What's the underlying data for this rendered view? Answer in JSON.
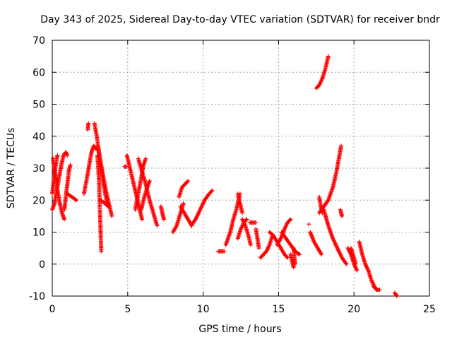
{
  "chart_data": {
    "type": "scatter",
    "title": "Day 343 of 2025, Sidereal Day-to-day VTEC variation (SDTVAR) for receiver bndr",
    "xlabel": "GPS time / hours",
    "ylabel": "SDTVAR / TECUs",
    "xlim": [
      0,
      25
    ],
    "ylim": [
      -10,
      70
    ],
    "xticks": [
      "0",
      "5",
      "10",
      "15",
      "20",
      "25"
    ],
    "yticks": [
      "-10",
      "0",
      "10",
      "20",
      "30",
      "40",
      "50",
      "60",
      "70"
    ],
    "grid": true,
    "marker": "plus",
    "color": "#ff0000",
    "series": [
      {
        "points": [
          [
            0.0,
            22
          ],
          [
            0.1,
            26
          ],
          [
            0.2,
            30
          ],
          [
            0.3,
            33
          ],
          [
            0.35,
            34
          ]
        ]
      },
      {
        "points": [
          [
            0.0,
            17
          ],
          [
            0.15,
            19
          ],
          [
            0.3,
            23
          ],
          [
            0.45,
            27
          ],
          [
            0.6,
            31
          ],
          [
            0.75,
            34
          ],
          [
            0.9,
            35
          ],
          [
            1.0,
            34
          ]
        ]
      },
      {
        "points": [
          [
            0.05,
            33
          ],
          [
            0.2,
            28
          ],
          [
            0.35,
            23
          ],
          [
            0.5,
            19
          ],
          [
            0.65,
            16
          ],
          [
            0.8,
            14
          ]
        ]
      },
      {
        "points": [
          [
            0.8,
            17
          ],
          [
            0.9,
            21
          ],
          [
            1.0,
            25
          ],
          [
            1.1,
            29
          ],
          [
            1.2,
            31
          ]
        ]
      },
      {
        "points": [
          [
            1.0,
            22
          ],
          [
            1.3,
            21
          ],
          [
            1.6,
            20
          ]
        ]
      },
      {
        "points": [
          [
            2.1,
            22
          ],
          [
            2.3,
            27
          ],
          [
            2.45,
            31
          ],
          [
            2.6,
            35
          ],
          [
            2.75,
            37
          ],
          [
            2.9,
            36
          ]
        ]
      },
      {
        "points": [
          [
            2.35,
            42
          ],
          [
            2.4,
            44
          ]
        ]
      },
      {
        "points": [
          [
            2.8,
            44
          ],
          [
            2.95,
            40
          ],
          [
            3.1,
            35
          ],
          [
            3.25,
            30
          ],
          [
            3.4,
            25
          ],
          [
            3.55,
            21
          ],
          [
            3.7,
            18
          ]
        ]
      },
      {
        "points": [
          [
            3.0,
            34
          ],
          [
            3.1,
            26
          ],
          [
            3.15,
            18
          ],
          [
            3.2,
            11
          ],
          [
            3.25,
            4
          ]
        ]
      },
      {
        "points": [
          [
            3.2,
            20
          ],
          [
            3.5,
            19
          ],
          [
            3.7,
            18
          ]
        ]
      },
      {
        "points": [
          [
            3.0,
            37
          ],
          [
            3.2,
            32
          ],
          [
            3.4,
            27
          ],
          [
            3.6,
            22
          ],
          [
            3.8,
            18
          ],
          [
            3.95,
            15
          ]
        ]
      },
      {
        "points": [
          [
            4.8,
            30.5
          ],
          [
            4.9,
            30.5
          ]
        ]
      },
      {
        "points": [
          [
            4.95,
            34
          ],
          [
            5.15,
            30
          ],
          [
            5.35,
            26
          ],
          [
            5.55,
            22
          ],
          [
            5.75,
            18
          ],
          [
            5.95,
            14
          ]
        ]
      },
      {
        "points": [
          [
            5.5,
            17
          ],
          [
            5.7,
            22
          ],
          [
            5.9,
            27
          ],
          [
            6.05,
            31
          ],
          [
            6.2,
            33
          ]
        ]
      },
      {
        "points": [
          [
            5.7,
            33
          ],
          [
            5.95,
            29
          ],
          [
            6.2,
            25
          ],
          [
            6.45,
            20
          ],
          [
            6.7,
            16
          ],
          [
            6.95,
            12
          ]
        ]
      },
      {
        "points": [
          [
            5.9,
            17
          ],
          [
            6.1,
            21
          ],
          [
            6.3,
            24
          ],
          [
            6.45,
            26
          ]
        ]
      },
      {
        "points": [
          [
            7.2,
            18
          ],
          [
            7.3,
            16
          ],
          [
            7.4,
            14
          ]
        ]
      },
      {
        "points": [
          [
            8.0,
            10
          ],
          [
            8.25,
            12
          ],
          [
            8.5,
            16
          ],
          [
            8.7,
            19
          ]
        ]
      },
      {
        "points": [
          [
            8.4,
            21
          ],
          [
            8.6,
            24
          ],
          [
            8.8,
            25
          ],
          [
            9.0,
            26
          ]
        ]
      },
      {
        "points": [
          [
            8.5,
            18
          ],
          [
            8.75,
            16
          ],
          [
            9.0,
            14
          ],
          [
            9.25,
            12
          ]
        ]
      },
      {
        "points": [
          [
            9.2,
            12
          ],
          [
            9.5,
            14
          ],
          [
            9.8,
            17
          ],
          [
            10.1,
            20
          ],
          [
            10.4,
            22
          ],
          [
            10.6,
            23
          ]
        ]
      },
      {
        "points": [
          [
            11.0,
            4
          ],
          [
            11.2,
            4
          ],
          [
            11.4,
            4
          ]
        ]
      },
      {
        "points": [
          [
            11.5,
            6
          ],
          [
            11.8,
            10
          ],
          [
            12.0,
            14
          ],
          [
            12.2,
            17
          ],
          [
            12.45,
            22
          ]
        ]
      },
      {
        "points": [
          [
            12.3,
            22
          ],
          [
            12.45,
            19
          ],
          [
            12.6,
            16
          ]
        ]
      },
      {
        "points": [
          [
            12.3,
            8
          ],
          [
            12.5,
            11
          ],
          [
            12.7,
            13
          ],
          [
            12.9,
            14
          ]
        ]
      },
      {
        "points": [
          [
            12.6,
            14
          ],
          [
            12.8,
            12
          ],
          [
            13.0,
            9
          ],
          [
            13.15,
            6
          ]
        ]
      },
      {
        "points": [
          [
            13.1,
            13
          ],
          [
            13.3,
            13
          ],
          [
            13.5,
            13
          ]
        ]
      },
      {
        "points": [
          [
            13.5,
            11
          ],
          [
            13.6,
            8
          ],
          [
            13.7,
            5
          ]
        ]
      },
      {
        "points": [
          [
            13.8,
            2
          ],
          [
            14.0,
            3
          ],
          [
            14.2,
            4
          ],
          [
            14.4,
            6
          ],
          [
            14.6,
            9
          ]
        ]
      },
      {
        "points": [
          [
            14.4,
            10
          ],
          [
            14.65,
            9
          ],
          [
            14.9,
            7
          ],
          [
            15.15,
            5
          ],
          [
            15.4,
            3
          ],
          [
            15.6,
            2
          ]
        ]
      },
      {
        "points": [
          [
            14.9,
            6
          ],
          [
            15.15,
            8
          ],
          [
            15.4,
            11
          ],
          [
            15.6,
            13
          ],
          [
            15.8,
            14
          ]
        ]
      },
      {
        "points": [
          [
            15.2,
            10
          ],
          [
            15.5,
            8
          ],
          [
            15.8,
            6
          ],
          [
            16.1,
            4
          ],
          [
            16.4,
            3
          ]
        ]
      },
      {
        "points": [
          [
            15.8,
            3
          ],
          [
            15.9,
            1
          ],
          [
            16.0,
            -1
          ]
        ]
      },
      {
        "points": [
          [
            16.0,
            5
          ],
          [
            16.05,
            2
          ],
          [
            16.1,
            0
          ]
        ]
      },
      {
        "points": [
          [
            17.0,
            12.5
          ]
        ]
      },
      {
        "points": [
          [
            17.1,
            10
          ],
          [
            17.35,
            7
          ],
          [
            17.6,
            5
          ],
          [
            17.85,
            3
          ]
        ]
      },
      {
        "points": [
          [
            17.5,
            55
          ],
          [
            17.7,
            56
          ],
          [
            17.9,
            58
          ],
          [
            18.1,
            61
          ],
          [
            18.3,
            65
          ]
        ]
      },
      {
        "points": [
          [
            17.7,
            21
          ],
          [
            17.8,
            18
          ],
          [
            17.9,
            16
          ]
        ]
      },
      {
        "points": [
          [
            17.7,
            16
          ],
          [
            18.0,
            18
          ],
          [
            18.3,
            20
          ],
          [
            18.6,
            24
          ],
          [
            18.8,
            28
          ],
          [
            19.0,
            33
          ],
          [
            19.15,
            37
          ]
        ]
      },
      {
        "points": [
          [
            18.0,
            17
          ],
          [
            18.3,
            12
          ],
          [
            18.6,
            8
          ],
          [
            18.9,
            5
          ],
          [
            19.2,
            2
          ],
          [
            19.5,
            0
          ]
        ]
      },
      {
        "points": [
          [
            19.1,
            17
          ],
          [
            19.2,
            15
          ]
        ]
      },
      {
        "points": [
          [
            19.6,
            5
          ],
          [
            19.8,
            3
          ],
          [
            20.0,
            0
          ],
          [
            20.2,
            -2
          ]
        ]
      },
      {
        "points": [
          [
            19.8,
            5
          ],
          [
            20.0,
            2
          ],
          [
            20.1,
            0
          ]
        ]
      },
      {
        "points": [
          [
            20.35,
            7
          ],
          [
            20.55,
            3
          ],
          [
            20.75,
            0
          ],
          [
            20.95,
            -2
          ],
          [
            21.15,
            -5
          ],
          [
            21.35,
            -7
          ],
          [
            21.5,
            -8
          ]
        ]
      },
      {
        "points": [
          [
            21.3,
            -7
          ],
          [
            21.5,
            -8
          ],
          [
            21.7,
            -8
          ]
        ]
      },
      {
        "points": [
          [
            22.7,
            -9
          ],
          [
            22.85,
            -10
          ]
        ]
      }
    ]
  }
}
